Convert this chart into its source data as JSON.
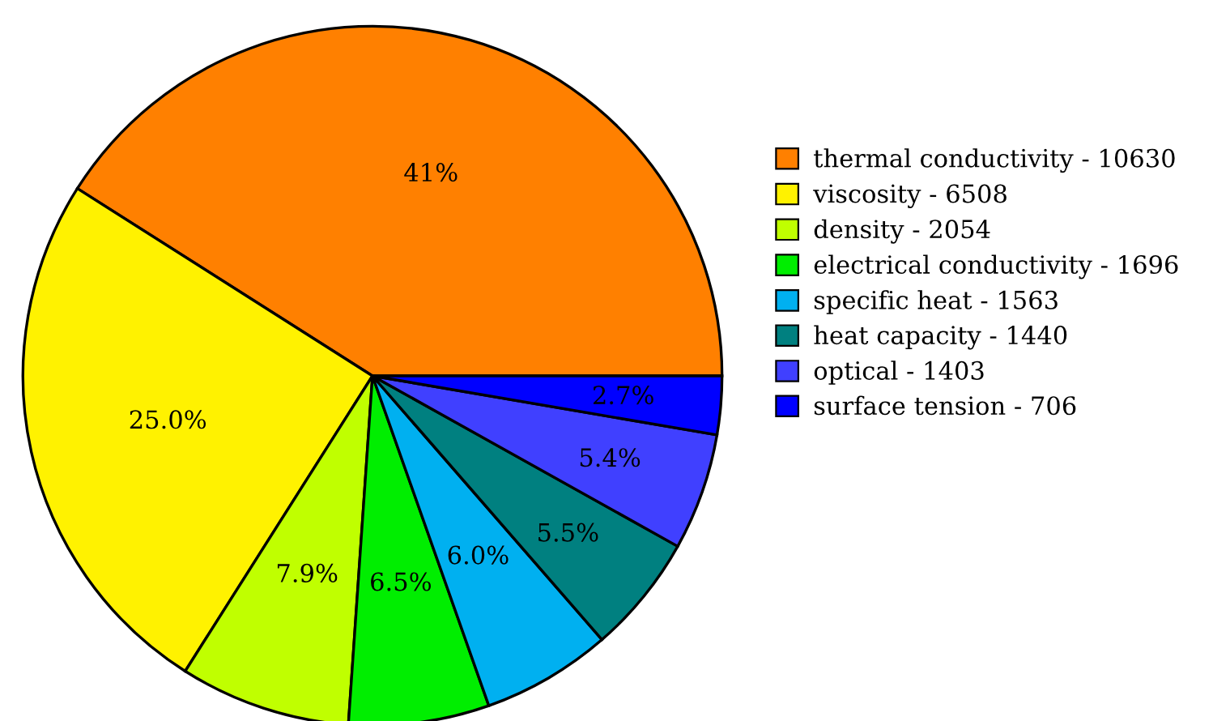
{
  "chart_data": {
    "type": "pie",
    "categories": [
      "thermal conductivity - 10630",
      "viscosity - 6508",
      "density - 2054",
      "electrical conductivity - 1696",
      "specific heat - 1563",
      "heat capacity - 1440",
      "optical - 1403",
      "surface tension - 706"
    ],
    "values": [
      41,
      25.0,
      7.9,
      6.5,
      6.0,
      5.5,
      5.4,
      2.7
    ],
    "colors": [
      "#ff8000",
      "#fff200",
      "#c0ff00",
      "#00ee00",
      "#00b0f0",
      "#008080",
      "#4040ff",
      "#0000ff"
    ],
    "value_labels": [
      "41%",
      "25.0%",
      "7.9%",
      "6.5%",
      "6.0%",
      "5.5%",
      "5.4%",
      "2.7%"
    ],
    "legend": "right"
  }
}
